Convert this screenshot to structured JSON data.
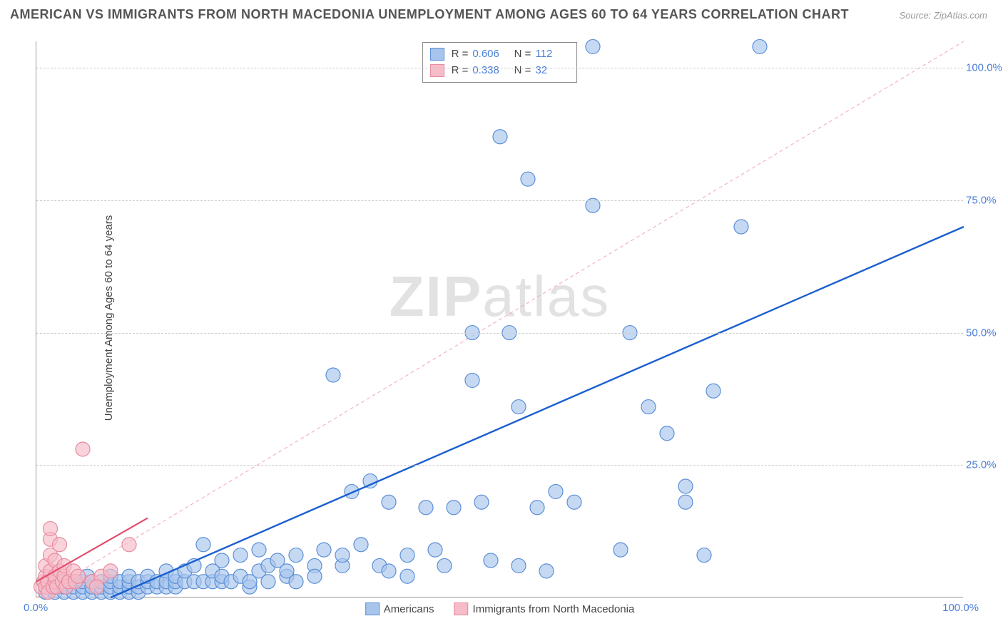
{
  "title": "AMERICAN VS IMMIGRANTS FROM NORTH MACEDONIA UNEMPLOYMENT AMONG AGES 60 TO 64 YEARS CORRELATION CHART",
  "source": "Source: ZipAtlas.com",
  "y_axis_label": "Unemployment Among Ages 60 to 64 years",
  "watermark_bold": "ZIP",
  "watermark_rest": "atlas",
  "chart": {
    "type": "scatter",
    "xlim": [
      0,
      100
    ],
    "ylim": [
      0,
      105
    ],
    "y_ticks": [
      25,
      50,
      75,
      100
    ],
    "y_tick_labels": [
      "25.0%",
      "50.0%",
      "75.0%",
      "100.0%"
    ],
    "x_tick_labels": {
      "min": "0.0%",
      "max": "100.0%"
    },
    "background_color": "#ffffff",
    "grid_color": "#cccccc",
    "axis_color": "#999999",
    "marker_radius": 10,
    "series": [
      {
        "name": "Americans",
        "fill_color": "#a7c5ec",
        "stroke_color": "#5b8fd6",
        "fill_opacity": 0.65,
        "R": 0.606,
        "N": 112,
        "trend": {
          "x1": 8,
          "y1": 0,
          "x2": 100,
          "y2": 70,
          "stroke": "#1a5fd0",
          "width": 2.4,
          "dash": "none"
        },
        "identity_line": {
          "x1": 0,
          "y1": 0,
          "x2": 100,
          "y2": 105,
          "stroke": "#f2a6b5",
          "width": 1,
          "dash": "5,4"
        },
        "points": [
          [
            1,
            1
          ],
          [
            2,
            1
          ],
          [
            2,
            2
          ],
          [
            3,
            1
          ],
          [
            3,
            2
          ],
          [
            3,
            3
          ],
          [
            4,
            1
          ],
          [
            4,
            2
          ],
          [
            4,
            3
          ],
          [
            5,
            1
          ],
          [
            5,
            2
          ],
          [
            5,
            3
          ],
          [
            5.5,
            4
          ],
          [
            6,
            1
          ],
          [
            6,
            2
          ],
          [
            6,
            3
          ],
          [
            7,
            1
          ],
          [
            7,
            2
          ],
          [
            7,
            3
          ],
          [
            8,
            1
          ],
          [
            8,
            2
          ],
          [
            8,
            3
          ],
          [
            8,
            4
          ],
          [
            9,
            1
          ],
          [
            9,
            2
          ],
          [
            9,
            3
          ],
          [
            10,
            1
          ],
          [
            10,
            2
          ],
          [
            10,
            3
          ],
          [
            10,
            4
          ],
          [
            11,
            1
          ],
          [
            11,
            2
          ],
          [
            11,
            3
          ],
          [
            12,
            2
          ],
          [
            12,
            3
          ],
          [
            12,
            4
          ],
          [
            13,
            2
          ],
          [
            13,
            3
          ],
          [
            14,
            2
          ],
          [
            14,
            3
          ],
          [
            14,
            5
          ],
          [
            15,
            2
          ],
          [
            15,
            3
          ],
          [
            15,
            4
          ],
          [
            16,
            3
          ],
          [
            16,
            5
          ],
          [
            17,
            3
          ],
          [
            17,
            6
          ],
          [
            18,
            3
          ],
          [
            18,
            10
          ],
          [
            19,
            3
          ],
          [
            19,
            5
          ],
          [
            20,
            3
          ],
          [
            20,
            4
          ],
          [
            20,
            7
          ],
          [
            21,
            3
          ],
          [
            22,
            4
          ],
          [
            22,
            8
          ],
          [
            23,
            2
          ],
          [
            23,
            3
          ],
          [
            24,
            5
          ],
          [
            24,
            9
          ],
          [
            25,
            3
          ],
          [
            25,
            6
          ],
          [
            26,
            7
          ],
          [
            27,
            4
          ],
          [
            27,
            5
          ],
          [
            28,
            8
          ],
          [
            28,
            3
          ],
          [
            30,
            6
          ],
          [
            30,
            4
          ],
          [
            31,
            9
          ],
          [
            32,
            42
          ],
          [
            33,
            6
          ],
          [
            33,
            8
          ],
          [
            34,
            20
          ],
          [
            35,
            10
          ],
          [
            36,
            22
          ],
          [
            37,
            6
          ],
          [
            38,
            5
          ],
          [
            38,
            18
          ],
          [
            40,
            8
          ],
          [
            40,
            4
          ],
          [
            42,
            17
          ],
          [
            43,
            9
          ],
          [
            44,
            6
          ],
          [
            45,
            17
          ],
          [
            47,
            50
          ],
          [
            47,
            41
          ],
          [
            48,
            18
          ],
          [
            49,
            7
          ],
          [
            50,
            87
          ],
          [
            51,
            50
          ],
          [
            52,
            36
          ],
          [
            52,
            6
          ],
          [
            53,
            79
          ],
          [
            54,
            17
          ],
          [
            55,
            5
          ],
          [
            56,
            20
          ],
          [
            58,
            18
          ],
          [
            60,
            104
          ],
          [
            60,
            74
          ],
          [
            63,
            9
          ],
          [
            64,
            50
          ],
          [
            66,
            36
          ],
          [
            68,
            31
          ],
          [
            70,
            21
          ],
          [
            72,
            8
          ],
          [
            73,
            39
          ],
          [
            76,
            70
          ],
          [
            78,
            104
          ],
          [
            70,
            18
          ]
        ]
      },
      {
        "name": "Immigrants from North Macedonia",
        "fill_color": "#f6bcc8",
        "stroke_color": "#e88ba0",
        "fill_opacity": 0.65,
        "R": 0.338,
        "N": 32,
        "trend": {
          "x1": 0,
          "y1": 3,
          "x2": 12,
          "y2": 15,
          "stroke": "#e24d6e",
          "width": 2.2,
          "dash": "none"
        },
        "points": [
          [
            0.5,
            2
          ],
          [
            0.8,
            3
          ],
          [
            1,
            2
          ],
          [
            1,
            4
          ],
          [
            1,
            6
          ],
          [
            1.2,
            3
          ],
          [
            1.3,
            1
          ],
          [
            1.5,
            5
          ],
          [
            1.5,
            8
          ],
          [
            1.8,
            2
          ],
          [
            1.5,
            11
          ],
          [
            1.5,
            13
          ],
          [
            2,
            3
          ],
          [
            2,
            4
          ],
          [
            2,
            7
          ],
          [
            2.2,
            2
          ],
          [
            2.5,
            5
          ],
          [
            2.5,
            10
          ],
          [
            2.8,
            3
          ],
          [
            3,
            4
          ],
          [
            3,
            6
          ],
          [
            3.2,
            2
          ],
          [
            3.5,
            3
          ],
          [
            4,
            5
          ],
          [
            4.2,
            3
          ],
          [
            4.5,
            4
          ],
          [
            5,
            28
          ],
          [
            6,
            3
          ],
          [
            7,
            4
          ],
          [
            8,
            5
          ],
          [
            10,
            10
          ],
          [
            6.5,
            2
          ]
        ]
      }
    ],
    "top_legend": {
      "rows": [
        {
          "swatch_fill": "#a7c5ec",
          "swatch_border": "#5b8fd6",
          "r_label": "R =",
          "r_val": "0.606",
          "n_label": "N =",
          "n_val": "112"
        },
        {
          "swatch_fill": "#f6bcc8",
          "swatch_border": "#e88ba0",
          "r_label": "R =",
          "r_val": "0.338",
          "n_label": "N =",
          "n_val": " 32"
        }
      ]
    },
    "bottom_legend": [
      {
        "swatch_fill": "#a7c5ec",
        "swatch_border": "#5b8fd6",
        "label": "Americans"
      },
      {
        "swatch_fill": "#f6bcc8",
        "swatch_border": "#e88ba0",
        "label": "Immigrants from North Macedonia"
      }
    ]
  }
}
